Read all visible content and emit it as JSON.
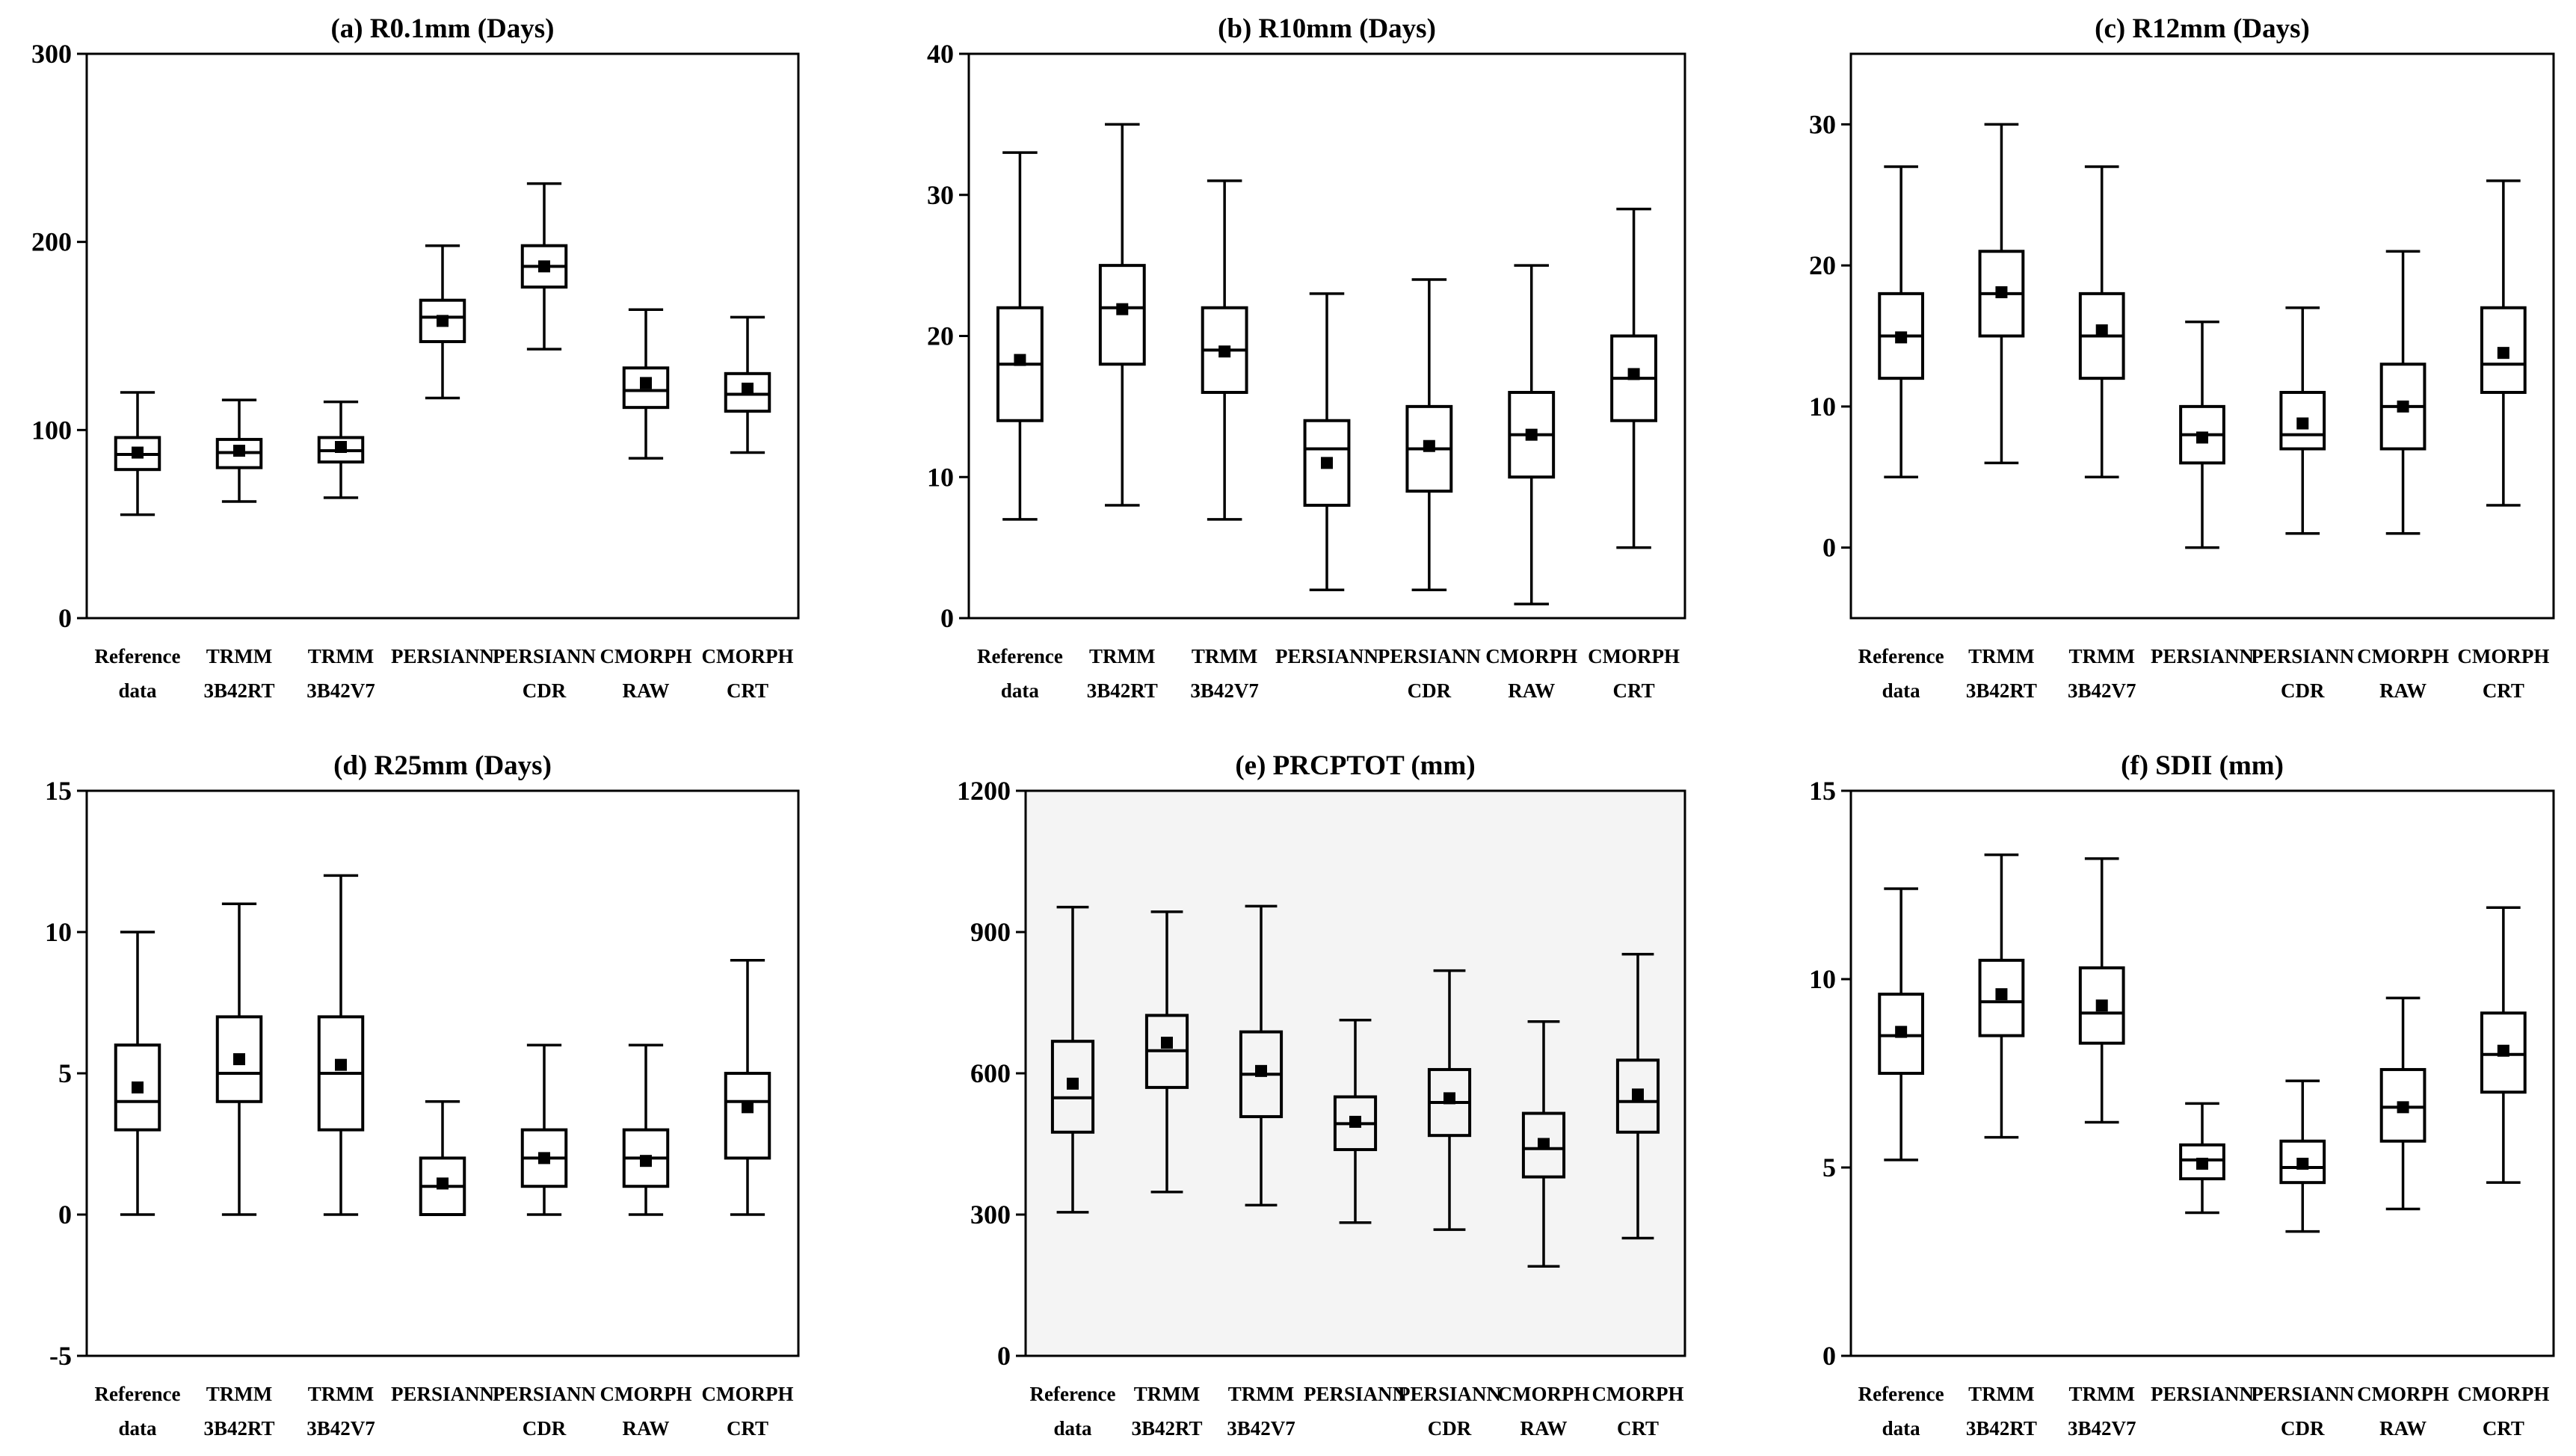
{
  "chart_data": [
    {
      "type": "boxplot",
      "title": "(a) R0.1mm (Days)",
      "ylim": [
        0,
        300
      ],
      "yticks": [
        0,
        100,
        200,
        300
      ],
      "plot_background": "#ffffff",
      "categories": [
        [
          "Reference",
          "data"
        ],
        [
          "TRMM",
          "3B42RT"
        ],
        [
          "TRMM",
          "3B42V7"
        ],
        [
          "PERSIANN"
        ],
        [
          "PERSIANN",
          "CDR"
        ],
        [
          "CMORPH",
          "RAW"
        ],
        [
          "CMORPH",
          "CRT"
        ]
      ],
      "boxes": [
        {
          "min": 55,
          "q1": 79,
          "median": 87,
          "q3": 96,
          "max": 120,
          "mean": 88
        },
        {
          "min": 62,
          "q1": 80,
          "median": 88,
          "q3": 95,
          "max": 116,
          "mean": 89
        },
        {
          "min": 64,
          "q1": 83,
          "median": 89,
          "q3": 96,
          "max": 115,
          "mean": 91
        },
        {
          "min": 117,
          "q1": 147,
          "median": 160,
          "q3": 169,
          "max": 198,
          "mean": 158
        },
        {
          "min": 143,
          "q1": 176,
          "median": 187,
          "q3": 198,
          "max": 231,
          "mean": 187
        },
        {
          "min": 85,
          "q1": 112,
          "median": 121,
          "q3": 133,
          "max": 164,
          "mean": 125
        },
        {
          "min": 88,
          "q1": 110,
          "median": 119,
          "q3": 130,
          "max": 160,
          "mean": 122
        }
      ]
    },
    {
      "type": "boxplot",
      "title": "(b) R10mm (Days)",
      "ylim": [
        0,
        40
      ],
      "yticks": [
        0,
        10,
        20,
        30,
        40
      ],
      "plot_background": "#ffffff",
      "categories": [
        [
          "Reference",
          "data"
        ],
        [
          "TRMM",
          "3B42RT"
        ],
        [
          "TRMM",
          "3B42V7"
        ],
        [
          "PERSIANN"
        ],
        [
          "PERSIANN",
          "CDR"
        ],
        [
          "CMORPH",
          "RAW"
        ],
        [
          "CMORPH",
          "CRT"
        ]
      ],
      "boxes": [
        {
          "min": 7,
          "q1": 14,
          "median": 18,
          "q3": 22,
          "max": 33,
          "mean": 18.3
        },
        {
          "min": 8,
          "q1": 18,
          "median": 22,
          "q3": 25,
          "max": 35,
          "mean": 21.9
        },
        {
          "min": 7,
          "q1": 16,
          "median": 19,
          "q3": 22,
          "max": 31,
          "mean": 18.9
        },
        {
          "min": 2,
          "q1": 8,
          "median": 12,
          "q3": 14,
          "max": 23,
          "mean": 11
        },
        {
          "min": 2,
          "q1": 9,
          "median": 12,
          "q3": 15,
          "max": 24,
          "mean": 12.2
        },
        {
          "min": 1,
          "q1": 10,
          "median": 13,
          "q3": 16,
          "max": 25,
          "mean": 13
        },
        {
          "min": 5,
          "q1": 14,
          "median": 17,
          "q3": 20,
          "max": 29,
          "mean": 17.3
        }
      ]
    },
    {
      "type": "boxplot",
      "title": "(c) R12mm (Days)",
      "ylim": [
        -5,
        35
      ],
      "yticks": [
        0,
        10,
        20,
        30
      ],
      "plot_background": "#ffffff",
      "categories": [
        [
          "Reference",
          "data"
        ],
        [
          "TRMM",
          "3B42RT"
        ],
        [
          "TRMM",
          "3B42V7"
        ],
        [
          "PERSIANN"
        ],
        [
          "PERSIANN",
          "CDR"
        ],
        [
          "CMORPH",
          "RAW"
        ],
        [
          "CMORPH",
          "CRT"
        ]
      ],
      "boxes": [
        {
          "min": 5,
          "q1": 12,
          "median": 15,
          "q3": 18,
          "max": 27,
          "mean": 14.9
        },
        {
          "min": 6,
          "q1": 15,
          "median": 18,
          "q3": 21,
          "max": 30,
          "mean": 18.1
        },
        {
          "min": 5,
          "q1": 12,
          "median": 15,
          "q3": 18,
          "max": 27,
          "mean": 15.4
        },
        {
          "min": 0,
          "q1": 6,
          "median": 8,
          "q3": 10,
          "max": 16,
          "mean": 7.8
        },
        {
          "min": 1,
          "q1": 7,
          "median": 8,
          "q3": 11,
          "max": 17,
          "mean": 8.8
        },
        {
          "min": 1,
          "q1": 7,
          "median": 10,
          "q3": 13,
          "max": 21,
          "mean": 10
        },
        {
          "min": 3,
          "q1": 11,
          "median": 13,
          "q3": 17,
          "max": 26,
          "mean": 13.8
        }
      ]
    },
    {
      "type": "boxplot",
      "title": "(d) R25mm (Days)",
      "ylim": [
        -5,
        15
      ],
      "yticks": [
        -5,
        0,
        5,
        10,
        15
      ],
      "plot_background": "#ffffff",
      "categories": [
        [
          "Reference",
          "data"
        ],
        [
          "TRMM",
          "3B42RT"
        ],
        [
          "TRMM",
          "3B42V7"
        ],
        [
          "PERSIANN"
        ],
        [
          "PERSIANN",
          "CDR"
        ],
        [
          "CMORPH",
          "RAW"
        ],
        [
          "CMORPH",
          "CRT"
        ]
      ],
      "boxes": [
        {
          "min": 0,
          "q1": 3,
          "median": 4,
          "q3": 6,
          "max": 10,
          "mean": 4.5
        },
        {
          "min": 0,
          "q1": 4,
          "median": 5,
          "q3": 7,
          "max": 11,
          "mean": 5.5
        },
        {
          "min": 0,
          "q1": 3,
          "median": 5,
          "q3": 7,
          "max": 12,
          "mean": 5.3
        },
        {
          "min": 0,
          "q1": 0,
          "median": 1,
          "q3": 2,
          "max": 4,
          "mean": 1.1
        },
        {
          "min": 0,
          "q1": 1,
          "median": 2,
          "q3": 3,
          "max": 6,
          "mean": 2
        },
        {
          "min": 0,
          "q1": 1,
          "median": 2,
          "q3": 3,
          "max": 6,
          "mean": 1.9
        },
        {
          "min": 0,
          "q1": 2,
          "median": 4,
          "q3": 5,
          "max": 9,
          "mean": 3.8
        }
      ]
    },
    {
      "type": "boxplot",
      "title": "(e) PRCPTOT (mm)",
      "ylim": [
        0,
        1200
      ],
      "yticks": [
        0,
        300,
        600,
        900,
        1200
      ],
      "plot_background": "#f4f4f4",
      "categories": [
        [
          "Reference",
          "data"
        ],
        [
          "TRMM",
          "3B42RT"
        ],
        [
          "TRMM",
          "3B42V7"
        ],
        [
          "PERSIANN"
        ],
        [
          "PERSIANN",
          "CDR"
        ],
        [
          "CMORPH",
          "RAW"
        ],
        [
          "CMORPH",
          "CRT"
        ]
      ],
      "boxes": [
        {
          "min": 305,
          "q1": 475,
          "median": 548,
          "q3": 668,
          "max": 953,
          "mean": 578
        },
        {
          "min": 348,
          "q1": 570,
          "median": 648,
          "q3": 723,
          "max": 943,
          "mean": 665
        },
        {
          "min": 320,
          "q1": 508,
          "median": 598,
          "q3": 688,
          "max": 955,
          "mean": 605
        },
        {
          "min": 283,
          "q1": 438,
          "median": 493,
          "q3": 550,
          "max": 713,
          "mean": 497
        },
        {
          "min": 268,
          "q1": 468,
          "median": 538,
          "q3": 608,
          "max": 818,
          "mean": 547
        },
        {
          "min": 190,
          "q1": 380,
          "median": 440,
          "q3": 515,
          "max": 710,
          "mean": 450
        },
        {
          "min": 250,
          "q1": 475,
          "median": 540,
          "q3": 628,
          "max": 853,
          "mean": 555
        }
      ]
    },
    {
      "type": "boxplot",
      "title": "(f) SDII (mm)",
      "ylim": [
        0,
        15
      ],
      "yticks": [
        0,
        5,
        10,
        15
      ],
      "plot_background": "#ffffff",
      "categories": [
        [
          "Reference",
          "data"
        ],
        [
          "TRMM",
          "3B42RT"
        ],
        [
          "TRMM",
          "3B42V7"
        ],
        [
          "PERSIANN"
        ],
        [
          "PERSIANN",
          "CDR"
        ],
        [
          "CMORPH",
          "RAW"
        ],
        [
          "CMORPH",
          "CRT"
        ]
      ],
      "boxes": [
        {
          "min": 5.2,
          "q1": 7.5,
          "median": 8.5,
          "q3": 9.6,
          "max": 12.4,
          "mean": 8.6
        },
        {
          "min": 5.8,
          "q1": 8.5,
          "median": 9.4,
          "q3": 10.5,
          "max": 13.3,
          "mean": 9.6
        },
        {
          "min": 6.2,
          "q1": 8.3,
          "median": 9.1,
          "q3": 10.3,
          "max": 13.2,
          "mean": 9.3
        },
        {
          "min": 3.8,
          "q1": 4.7,
          "median": 5.2,
          "q3": 5.6,
          "max": 6.7,
          "mean": 5.1
        },
        {
          "min": 3.3,
          "q1": 4.6,
          "median": 5.0,
          "q3": 5.7,
          "max": 7.3,
          "mean": 5.1
        },
        {
          "min": 3.9,
          "q1": 5.7,
          "median": 6.6,
          "q3": 7.6,
          "max": 9.5,
          "mean": 6.6
        },
        {
          "min": 4.6,
          "q1": 7.0,
          "median": 8.0,
          "q3": 9.1,
          "max": 11.9,
          "mean": 8.1
        }
      ]
    }
  ]
}
